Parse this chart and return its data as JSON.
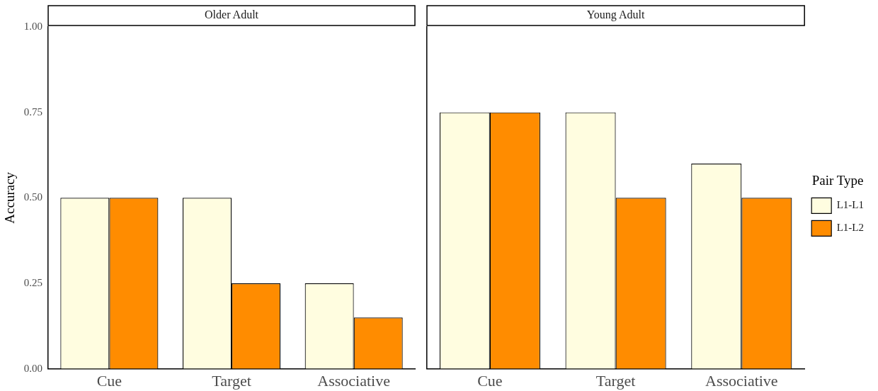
{
  "chart_data": [
    {
      "type": "bar",
      "title": "Older Adult",
      "ylabel": "Accuracy",
      "categories": [
        "Cue",
        "Target",
        "Associative"
      ],
      "series": [
        {
          "color": "#fffde0",
          "values": [
            0.5,
            0.5,
            0.25
          ]
        },
        {
          "color": "#ff8c00",
          "values": [
            0.5,
            0.25,
            0.15
          ]
        }
      ],
      "ylim": [
        0,
        1
      ],
      "yticks": [
        {
          "value": 0,
          "label": "0.00"
        },
        {
          "value": 0.25,
          "label": "0.25"
        },
        {
          "value": 0.5,
          "label": "0.50"
        },
        {
          "value": 0.75,
          "label": "0.75"
        },
        {
          "value": 1,
          "label": "1.00"
        }
      ],
      "grid": false,
      "legend": false
    },
    {
      "type": "bar",
      "title": "Young Adult",
      "categories": [
        "Cue",
        "Target",
        "Associative"
      ],
      "legend_title": "Pair Type",
      "series": [
        {
          "name": "L1-L1",
          "color": "#fffde0",
          "values": [
            0.75,
            0.75,
            0.6
          ]
        },
        {
          "name": "L1-L2",
          "color": "#ff8c00",
          "values": [
            0.75,
            0.5,
            0.5
          ]
        }
      ],
      "ylim": [
        0,
        1
      ],
      "yticks": [
        {
          "value": 0,
          "label": null
        },
        {
          "value": 0.25,
          "label": null
        },
        {
          "value": 0.5,
          "label": null
        },
        {
          "value": 0.75,
          "label": null
        },
        {
          "value": 1,
          "label": null
        }
      ],
      "grid": false,
      "legend": "right",
      "tick_labels": "x"
    }
  ]
}
